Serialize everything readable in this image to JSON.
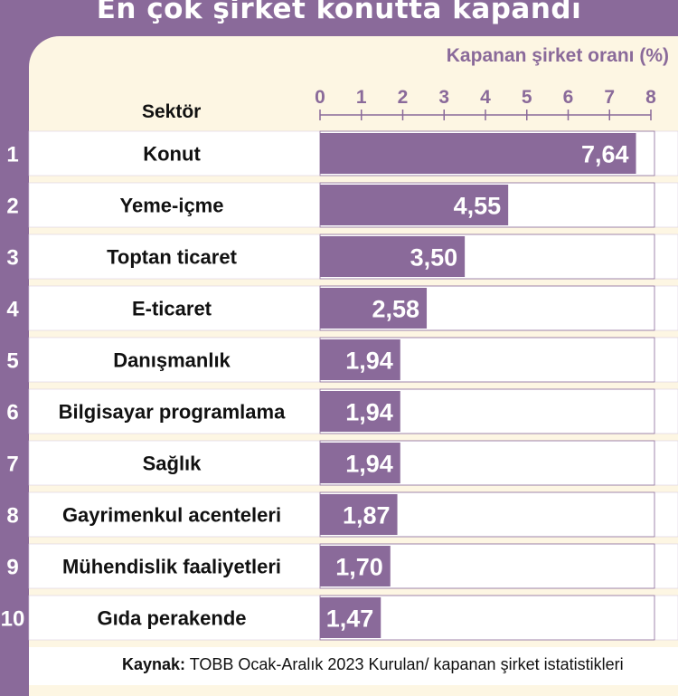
{
  "title": "En çok şirket konutta kapandı",
  "source_label": "Kaynak:",
  "source_text": "TOBB Ocak-Aralık 2023 Kurulan/ kapanan şirket istatistikleri",
  "colors": {
    "bar": "#8a6a9a",
    "panel": "#fdf6e3",
    "frame": "#8a6a9a"
  },
  "chart_data": {
    "type": "bar",
    "orientation": "horizontal",
    "title": "En çok şirket konutta kapandı",
    "xlabel": "Kapanan şirket oranı (%)",
    "ylabel": "Sektör",
    "xlim": [
      0,
      8
    ],
    "ticks": [
      "0",
      "1",
      "2",
      "3",
      "4",
      "5",
      "6",
      "7",
      "8"
    ],
    "ranks": [
      "1",
      "2",
      "3",
      "4",
      "5",
      "6",
      "7",
      "8",
      "9",
      "10"
    ],
    "categories": [
      "Konut",
      "Yeme-içme",
      "Toptan ticaret",
      "E-ticaret",
      "Danışmanlık",
      "Bilgisayar programlama",
      "Sağlık",
      "Gayrimenkul acenteleri",
      "Mühendislik faaliyetleri",
      "Gıda perakende"
    ],
    "values": [
      7.64,
      4.55,
      3.5,
      2.58,
      1.94,
      1.94,
      1.94,
      1.87,
      1.7,
      1.47
    ],
    "value_labels": [
      "7,64",
      "4,55",
      "3,50",
      "2,58",
      "1,94",
      "1,94",
      "1,94",
      "1,87",
      "1,70",
      "1,47"
    ]
  }
}
